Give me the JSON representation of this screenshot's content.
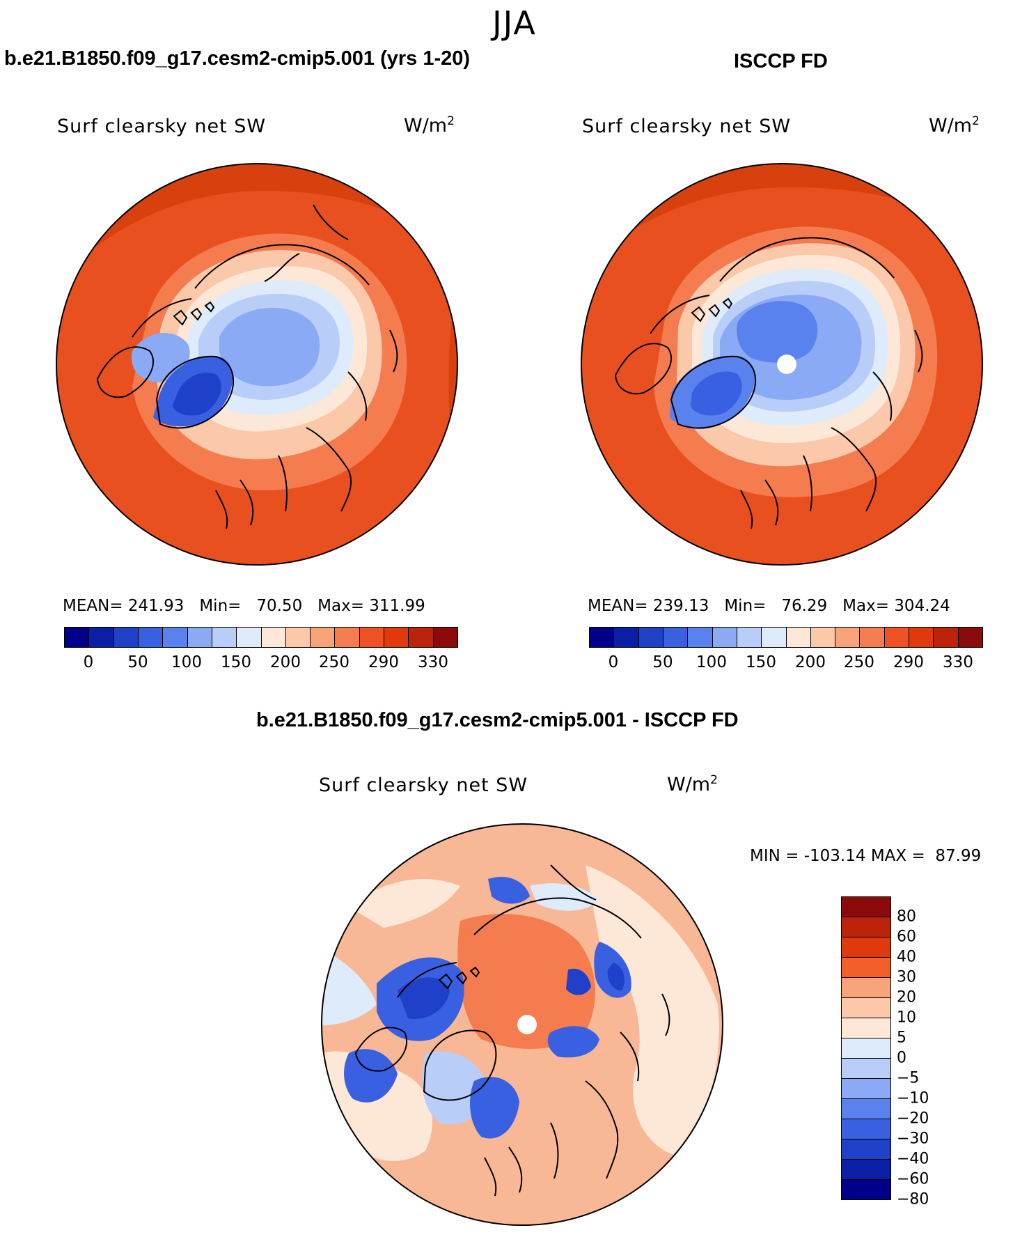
{
  "season": "JJA",
  "panels": [
    {
      "title": "b.e21.B1850.f09_g17.cesm2-cmip5.001 (yrs 1-20)",
      "variable": "Surf clearsky net SW",
      "units_base": "W/m",
      "units_exp": "2",
      "mean_label": "MEAN=",
      "mean": "241.93",
      "min_label": "Min=",
      "min": "70.50",
      "max_label": "Max=",
      "max": "311.99"
    },
    {
      "title": "ISCCP FD",
      "variable": "Surf clearsky net SW",
      "units_base": "W/m",
      "units_exp": "2",
      "mean_label": "MEAN=",
      "mean": "239.13",
      "min_label": "Min=",
      "min": "76.29",
      "max_label": "Max=",
      "max": "304.24"
    }
  ],
  "diff_panel": {
    "title": "b.e21.B1850.f09_g17.cesm2-cmip5.001 - ISCCP FD",
    "variable": "Surf clearsky net SW",
    "units_base": "W/m",
    "units_exp": "2",
    "min_label": "MIN =",
    "min": "-103.14",
    "max_label": "MAX =",
    "max": "87.99"
  },
  "abs_colorbar": {
    "colors": [
      "#00008b",
      "#0a1fa6",
      "#1f40c8",
      "#3860e0",
      "#5a82ee",
      "#8aaaf5",
      "#b8cdf8",
      "#ddebfa",
      "#fde8d8",
      "#fbc8aa",
      "#f8a47b",
      "#f57c4e",
      "#ef5325",
      "#e03a0c",
      "#bb240b",
      "#8b0a0a"
    ],
    "ticks": [
      "0",
      "50",
      "100",
      "150",
      "200",
      "250",
      "290",
      "330"
    ]
  },
  "diff_colorbar": {
    "colors": [
      "#8b0a0a",
      "#bb240b",
      "#e03a0c",
      "#f45e2b",
      "#f8a47b",
      "#fbc8aa",
      "#fde8d8",
      "#ddebfa",
      "#b8cdf8",
      "#8aaaf5",
      "#5a82ee",
      "#3860e0",
      "#1f40c8",
      "#0a1fa6",
      "#00008b"
    ],
    "ticks": [
      "80",
      "60",
      "40",
      "30",
      "20",
      "10",
      "5",
      "0",
      "−5",
      "−10",
      "−20",
      "−30",
      "−40",
      "−60",
      "−80"
    ]
  },
  "map_colors": {
    "ocean_warm": "#e8501f",
    "deep_warm": "#d8410e",
    "mid_warm": "#f57c4e",
    "light_warm": "#fbc8aa",
    "pale": "#fde8d8",
    "pale_blue": "#ddebfa",
    "light_blue": "#b8cdf8",
    "mid_blue": "#8aaaf5",
    "blue": "#5a82ee",
    "dark_blue": "#3860e0",
    "deep_blue": "#1f40c8",
    "navy": "#0a1fa6",
    "diff_bg": "#f8b896"
  }
}
